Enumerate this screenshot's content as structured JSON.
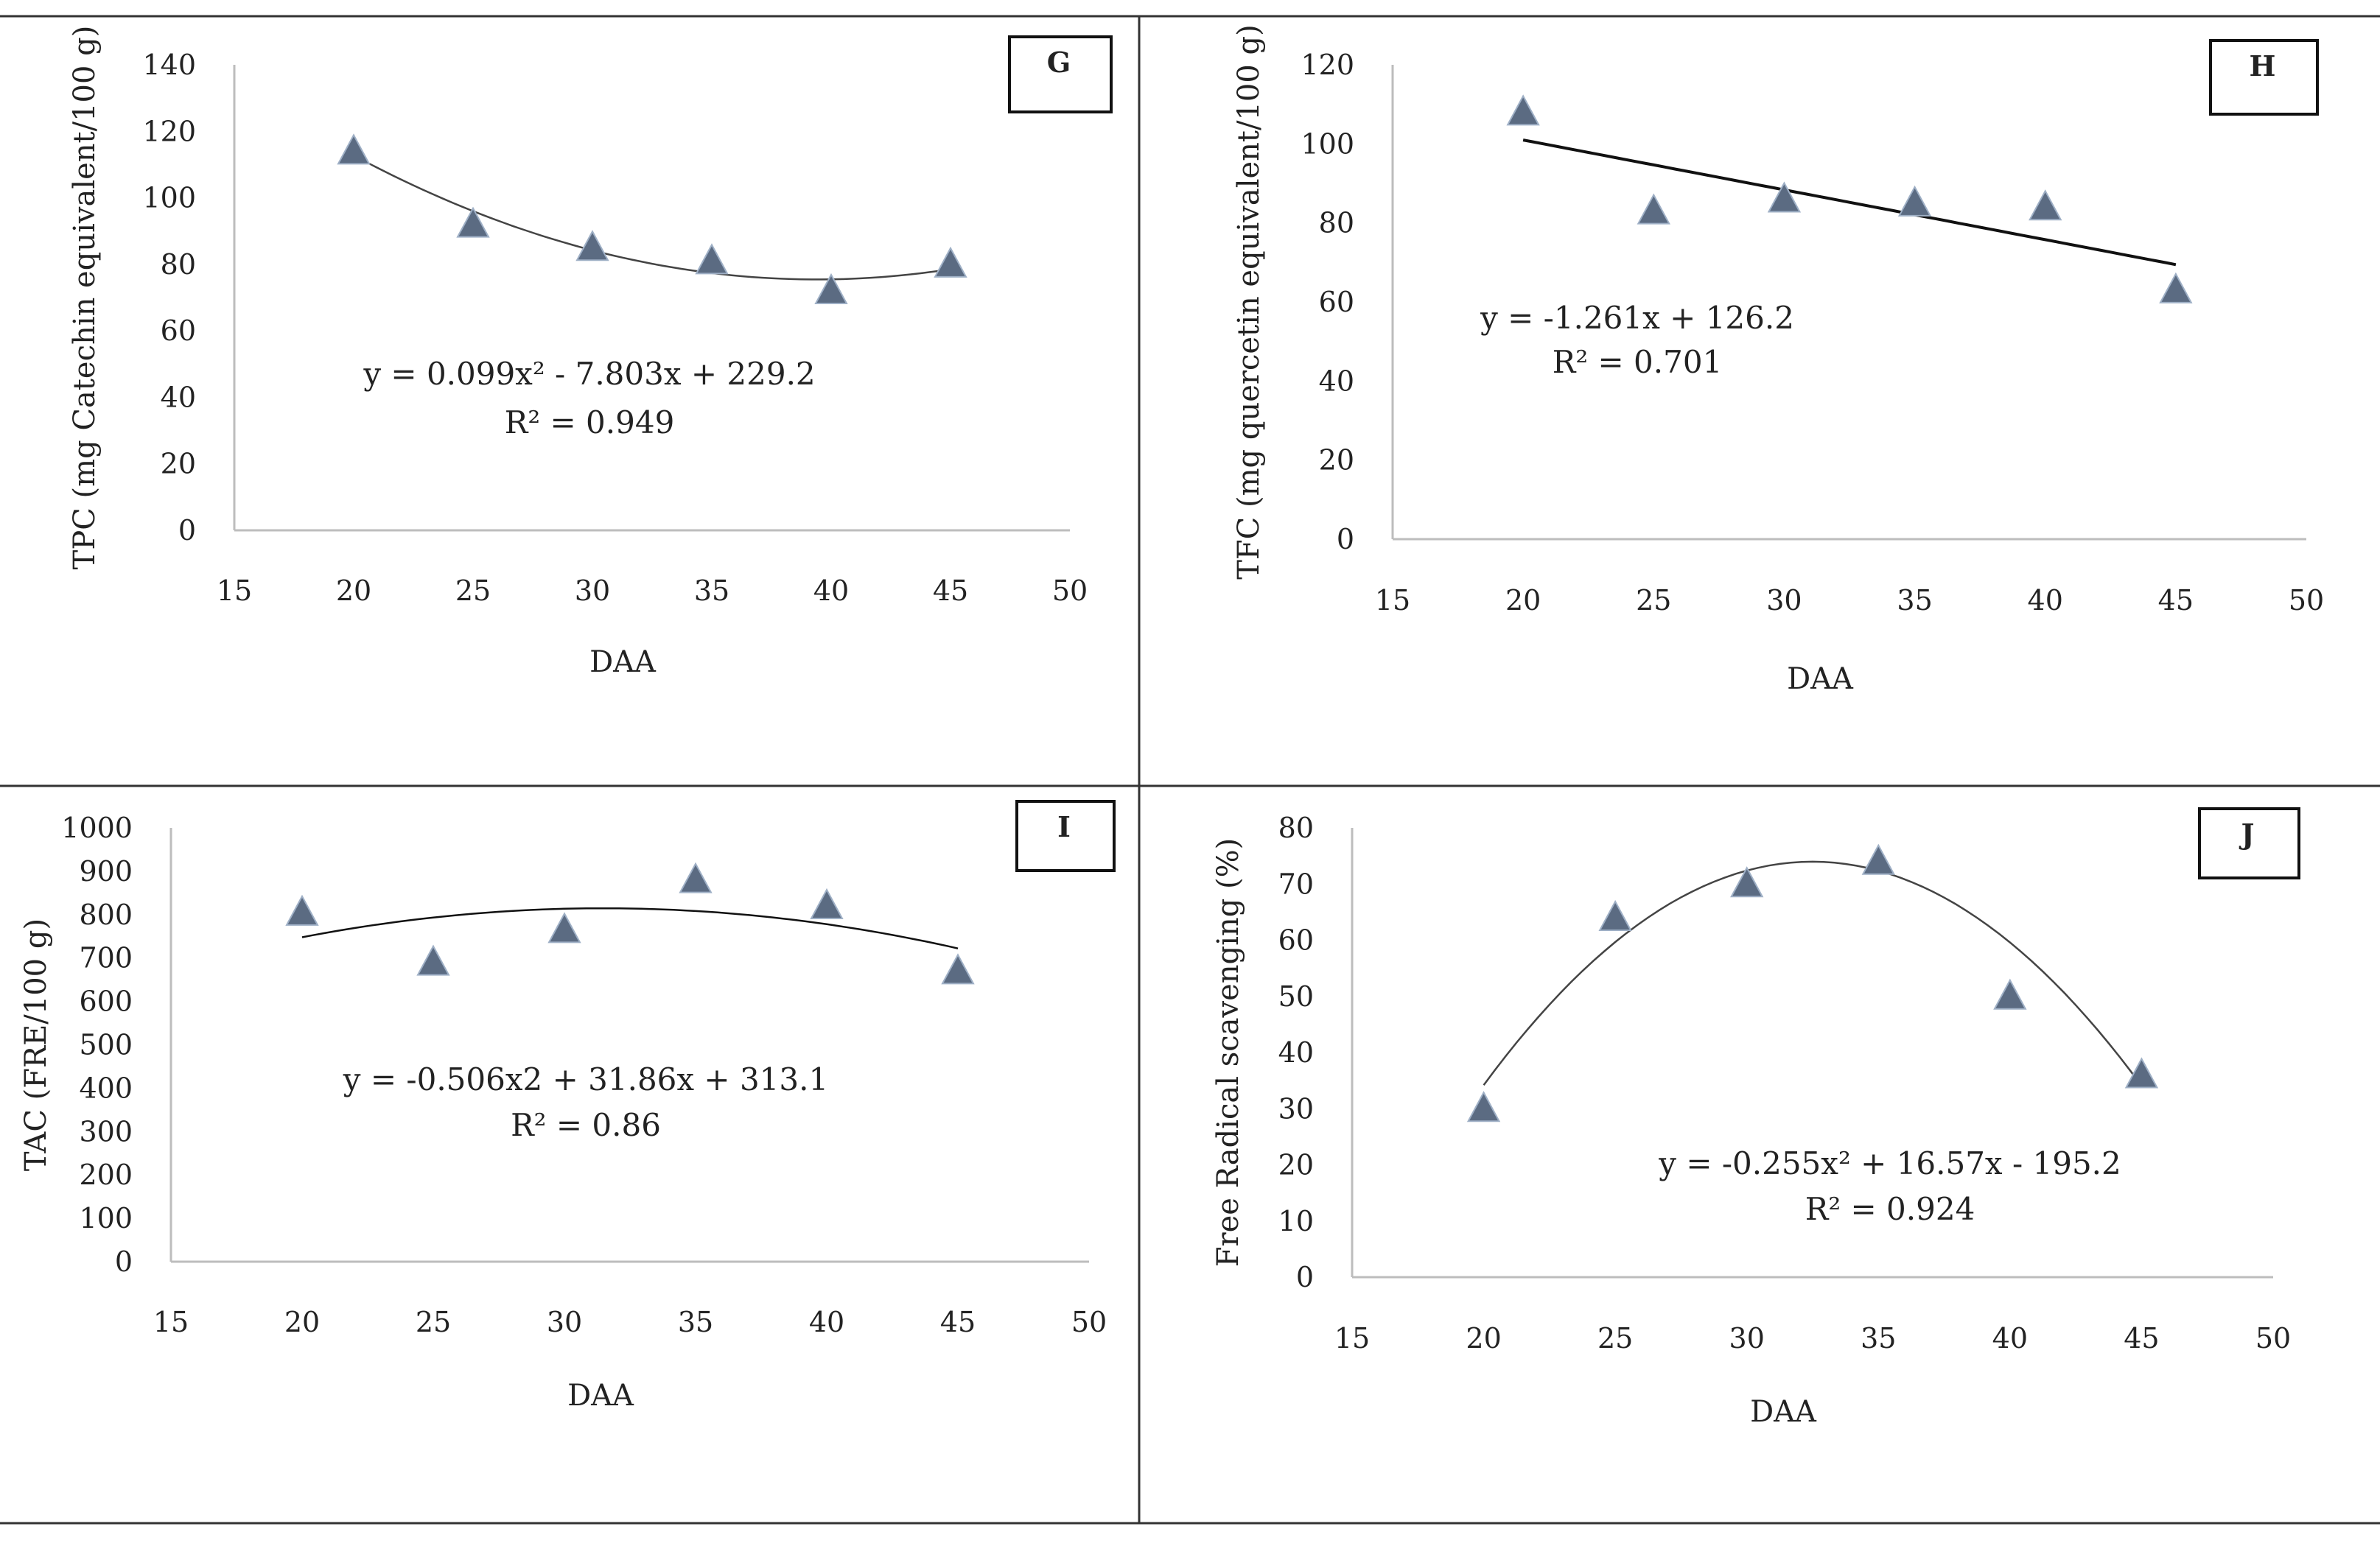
{
  "figure_title": "",
  "chart_data": [
    {
      "id": "G",
      "type": "scatter",
      "panel_letter": "G",
      "ylabel": "TPC (mg Catechin equivalent/100 g)",
      "xlabel": "DAA",
      "xlim": [
        15,
        50
      ],
      "ylim": [
        0,
        140
      ],
      "x_ticks": [
        15,
        20,
        25,
        30,
        35,
        40,
        45,
        50
      ],
      "y_ticks": [
        0,
        20,
        40,
        60,
        80,
        100,
        120,
        140
      ],
      "points": {
        "x": [
          20,
          25,
          30,
          35,
          40,
          45
        ],
        "y": [
          114,
          92,
          85,
          81,
          72,
          80
        ]
      },
      "trendline": {
        "kind": "poly2",
        "a": 0.099,
        "b": -7.803,
        "c": 229.2,
        "x_range": [
          20,
          45
        ]
      },
      "equation": "y = 0.099x² - 7.803x + 229.2",
      "r2": "R² = 0.949",
      "marker_color": "#5b6b82",
      "line_color": "#444444"
    },
    {
      "id": "H",
      "type": "scatter",
      "panel_letter": "H",
      "ylabel": "TFC (mg quercetin equivalent/100 g)",
      "xlabel": "DAA",
      "xlim": [
        15,
        50
      ],
      "ylim": [
        0,
        120
      ],
      "x_ticks": [
        15,
        20,
        25,
        30,
        35,
        40,
        45,
        50
      ],
      "y_ticks": [
        0,
        20,
        40,
        60,
        80,
        100,
        120
      ],
      "points": {
        "x": [
          20,
          25,
          30,
          35,
          40,
          45
        ],
        "y": [
          108,
          83,
          86,
          85,
          84,
          63
        ]
      },
      "trendline": {
        "kind": "linear",
        "m": -1.261,
        "c": 126.2,
        "x_range": [
          20,
          45
        ]
      },
      "equation": "y = -1.261x + 126.2",
      "r2": "R² = 0.701",
      "marker_color": "#5b6b82",
      "line_color": "#111111"
    },
    {
      "id": "I",
      "type": "scatter",
      "panel_letter": "I",
      "ylabel": "TAC (FRE/100 g)",
      "xlabel": "DAA",
      "xlim": [
        15,
        50
      ],
      "ylim": [
        0,
        1000
      ],
      "x_ticks": [
        15,
        20,
        25,
        30,
        35,
        40,
        45,
        50
      ],
      "y_ticks": [
        0,
        100,
        200,
        300,
        400,
        500,
        600,
        700,
        800,
        900,
        1000
      ],
      "points": {
        "x": [
          20,
          25,
          30,
          35,
          40,
          45
        ],
        "y": [
          805,
          690,
          765,
          880,
          820,
          670
        ]
      },
      "trendline": {
        "kind": "poly2",
        "a": -0.506,
        "b": 31.86,
        "c": 313.1,
        "x_range": [
          20,
          45
        ]
      },
      "equation": "y = -0.506x2 + 31.86x + 313.1",
      "r2": "R² = 0.86",
      "marker_color": "#5b6b82",
      "line_color": "#111111"
    },
    {
      "id": "J",
      "type": "scatter",
      "panel_letter": "J",
      "ylabel": "Free Radical scavenging (%)",
      "xlabel": "DAA",
      "xlim": [
        15,
        50
      ],
      "ylim": [
        0,
        80
      ],
      "x_ticks": [
        15,
        20,
        25,
        30,
        35,
        40,
        45,
        50
      ],
      "y_ticks": [
        0,
        10,
        20,
        30,
        40,
        50,
        60,
        70,
        80
      ],
      "points": {
        "x": [
          20,
          25,
          30,
          35,
          40,
          45
        ],
        "y": [
          30,
          64,
          70,
          74,
          50,
          36
        ]
      },
      "trendline": {
        "kind": "poly2",
        "a": -0.255,
        "b": 16.57,
        "c": -195.2,
        "x_range": [
          20,
          45
        ]
      },
      "equation": "y = -0.255x² + 16.57x - 195.2",
      "r2": "R² = 0.924",
      "marker_color": "#5b6b82",
      "line_color": "#444444"
    }
  ]
}
